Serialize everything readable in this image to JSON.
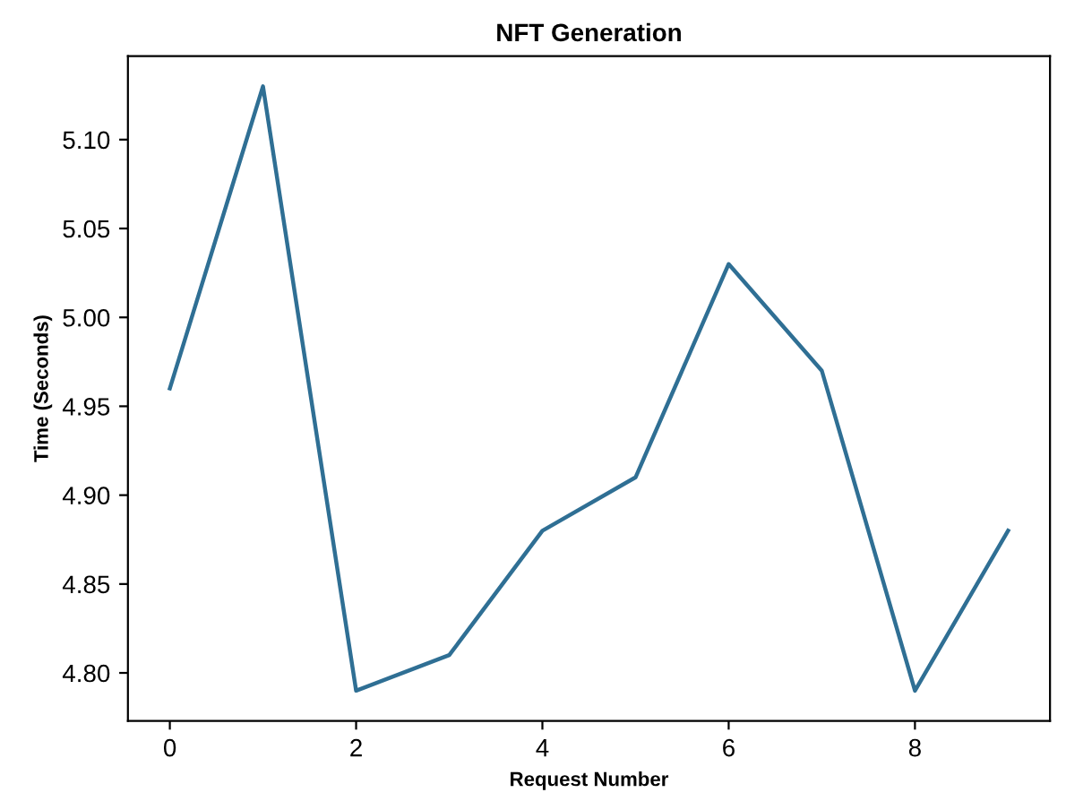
{
  "chart_data": {
    "type": "line",
    "title": "NFT Generation",
    "xlabel": "Request Number",
    "ylabel": "Time (Seconds)",
    "x": [
      0,
      1,
      2,
      3,
      4,
      5,
      6,
      7,
      8,
      9
    ],
    "series": [
      {
        "color": "#2f6f94",
        "values": [
          4.96,
          5.13,
          4.79,
          4.81,
          4.88,
          4.91,
          5.03,
          4.97,
          4.79,
          4.88
        ]
      }
    ],
    "xlim": [
      -0.45,
      9.45
    ],
    "xticks": [
      0,
      2,
      4,
      6,
      8
    ],
    "ylim": [
      4.773,
      5.147
    ],
    "yticks": [
      {
        "value": 4.8,
        "label": "4.80"
      },
      {
        "value": 4.85,
        "label": "4.85"
      },
      {
        "value": 4.9,
        "label": "4.90"
      },
      {
        "value": 4.95,
        "label": "4.95"
      },
      {
        "value": 5.0,
        "label": "5.00"
      },
      {
        "value": 5.05,
        "label": "5.05"
      },
      {
        "value": 5.1,
        "label": "5.10"
      }
    ],
    "grid": false,
    "legend": false,
    "marker": "none",
    "line_style": "solid"
  }
}
